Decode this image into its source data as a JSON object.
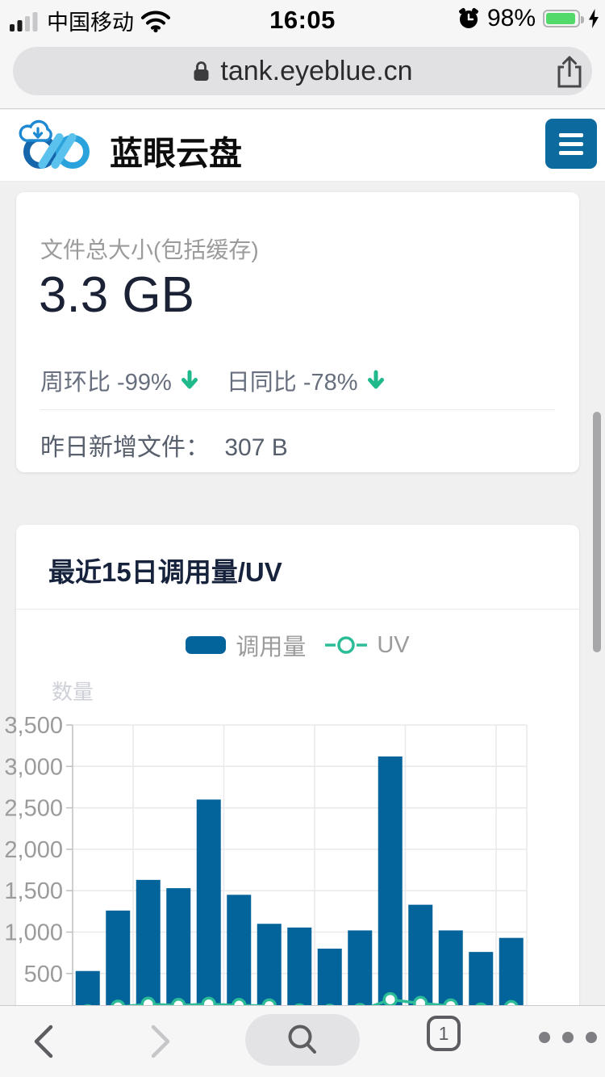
{
  "status_bar": {
    "carrier": "中国移动",
    "time": "16:05",
    "battery": "98%"
  },
  "address_bar": {
    "domain": "tank.eyeblue.cn"
  },
  "site_header": {
    "title": "蓝眼云盘"
  },
  "storage_card": {
    "label": "文件总大小(包括缓存)",
    "total_size": "3.3 GB",
    "week_over_week": "周环比 -99%",
    "day_over_day": "日同比 -78%",
    "yesterday_new_label": "昨日新增文件：",
    "yesterday_new_value": "307 B"
  },
  "chart_card": {
    "title": "最近15日调用量/UV"
  },
  "chart_data": {
    "type": "bar",
    "title": "最近15日调用量/UV",
    "ylabel": "数量",
    "ylim": [
      0,
      3500
    ],
    "y_tick_labels": [
      "3,500",
      "3,000",
      "2,500",
      "2,000",
      "1,500",
      "1,000",
      "500"
    ],
    "grid": true,
    "legend_position": "top",
    "x_labels_visible": false,
    "categories_count": 15,
    "series": [
      {
        "name": "调用量",
        "type": "bar",
        "color": "#03639b",
        "values": [
          530,
          1260,
          1630,
          1530,
          2600,
          1450,
          1100,
          1055,
          800,
          1020,
          3120,
          1330,
          1020,
          760,
          930
        ]
      },
      {
        "name": "UV",
        "type": "line",
        "color": "#2cbc97",
        "values": [
          40,
          95,
          130,
          115,
          130,
          115,
          110,
          50,
          45,
          55,
          185,
          140,
          110,
          60,
          90
        ]
      }
    ]
  },
  "toolbar": {
    "tab_count": "1"
  },
  "colors": {
    "brand_blue": "#0d6a9e",
    "bar_blue": "#03639b",
    "uv_teal": "#2cbc97",
    "trend_down_green": "#20b98c",
    "battery_green": "#53d86a"
  }
}
